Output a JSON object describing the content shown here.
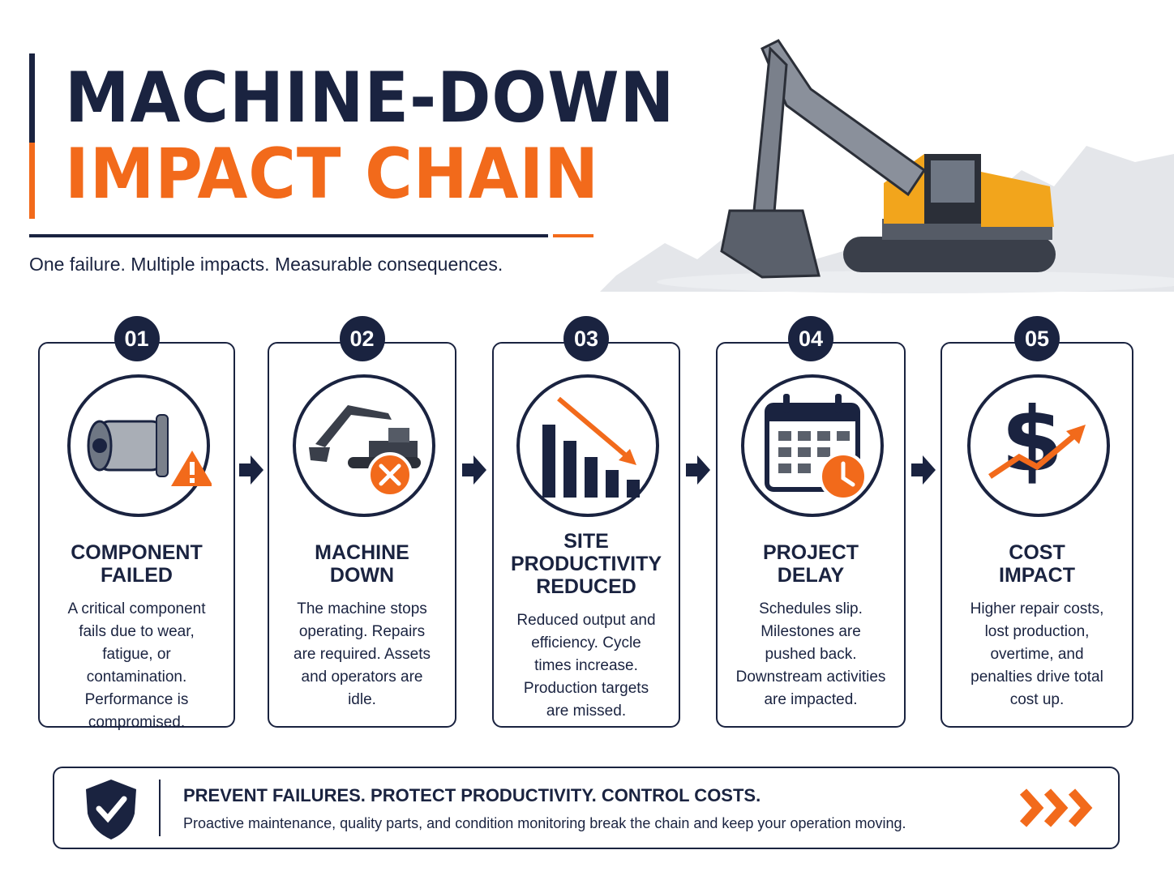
{
  "header": {
    "title_line1": "MACHINE-DOWN",
    "title_line2": "IMPACT CHAIN",
    "subtitle": "One failure. Multiple impacts. Measurable consequences."
  },
  "steps": [
    {
      "number": "01",
      "title_lines": [
        "COMPONENT",
        "FAILED"
      ],
      "description": "A critical component fails due to wear, fatigue, or contamination. Performance is compromised."
    },
    {
      "number": "02",
      "title_lines": [
        "MACHINE",
        "DOWN"
      ],
      "description": "The machine stops operating. Repairs are required. Assets and operators are idle."
    },
    {
      "number": "03",
      "title_lines": [
        "SITE",
        "PRODUCTIVITY",
        "REDUCED"
      ],
      "description": "Reduced output and efficiency. Cycle times increase. Production targets are missed."
    },
    {
      "number": "04",
      "title_lines": [
        "PROJECT",
        "DELAY"
      ],
      "description": "Schedules slip. Milestones are pushed back. Downstream activities are impacted."
    },
    {
      "number": "05",
      "title_lines": [
        "COST",
        "IMPACT"
      ],
      "description": "Higher repair costs, lost production, overtime, and penalties drive total cost up."
    }
  ],
  "footer": {
    "headline": "PREVENT FAILURES. PROTECT PRODUCTIVITY. CONTROL COSTS.",
    "text": "Proactive maintenance, quality parts, and condition monitoring break the chain and keep your operation moving."
  }
}
